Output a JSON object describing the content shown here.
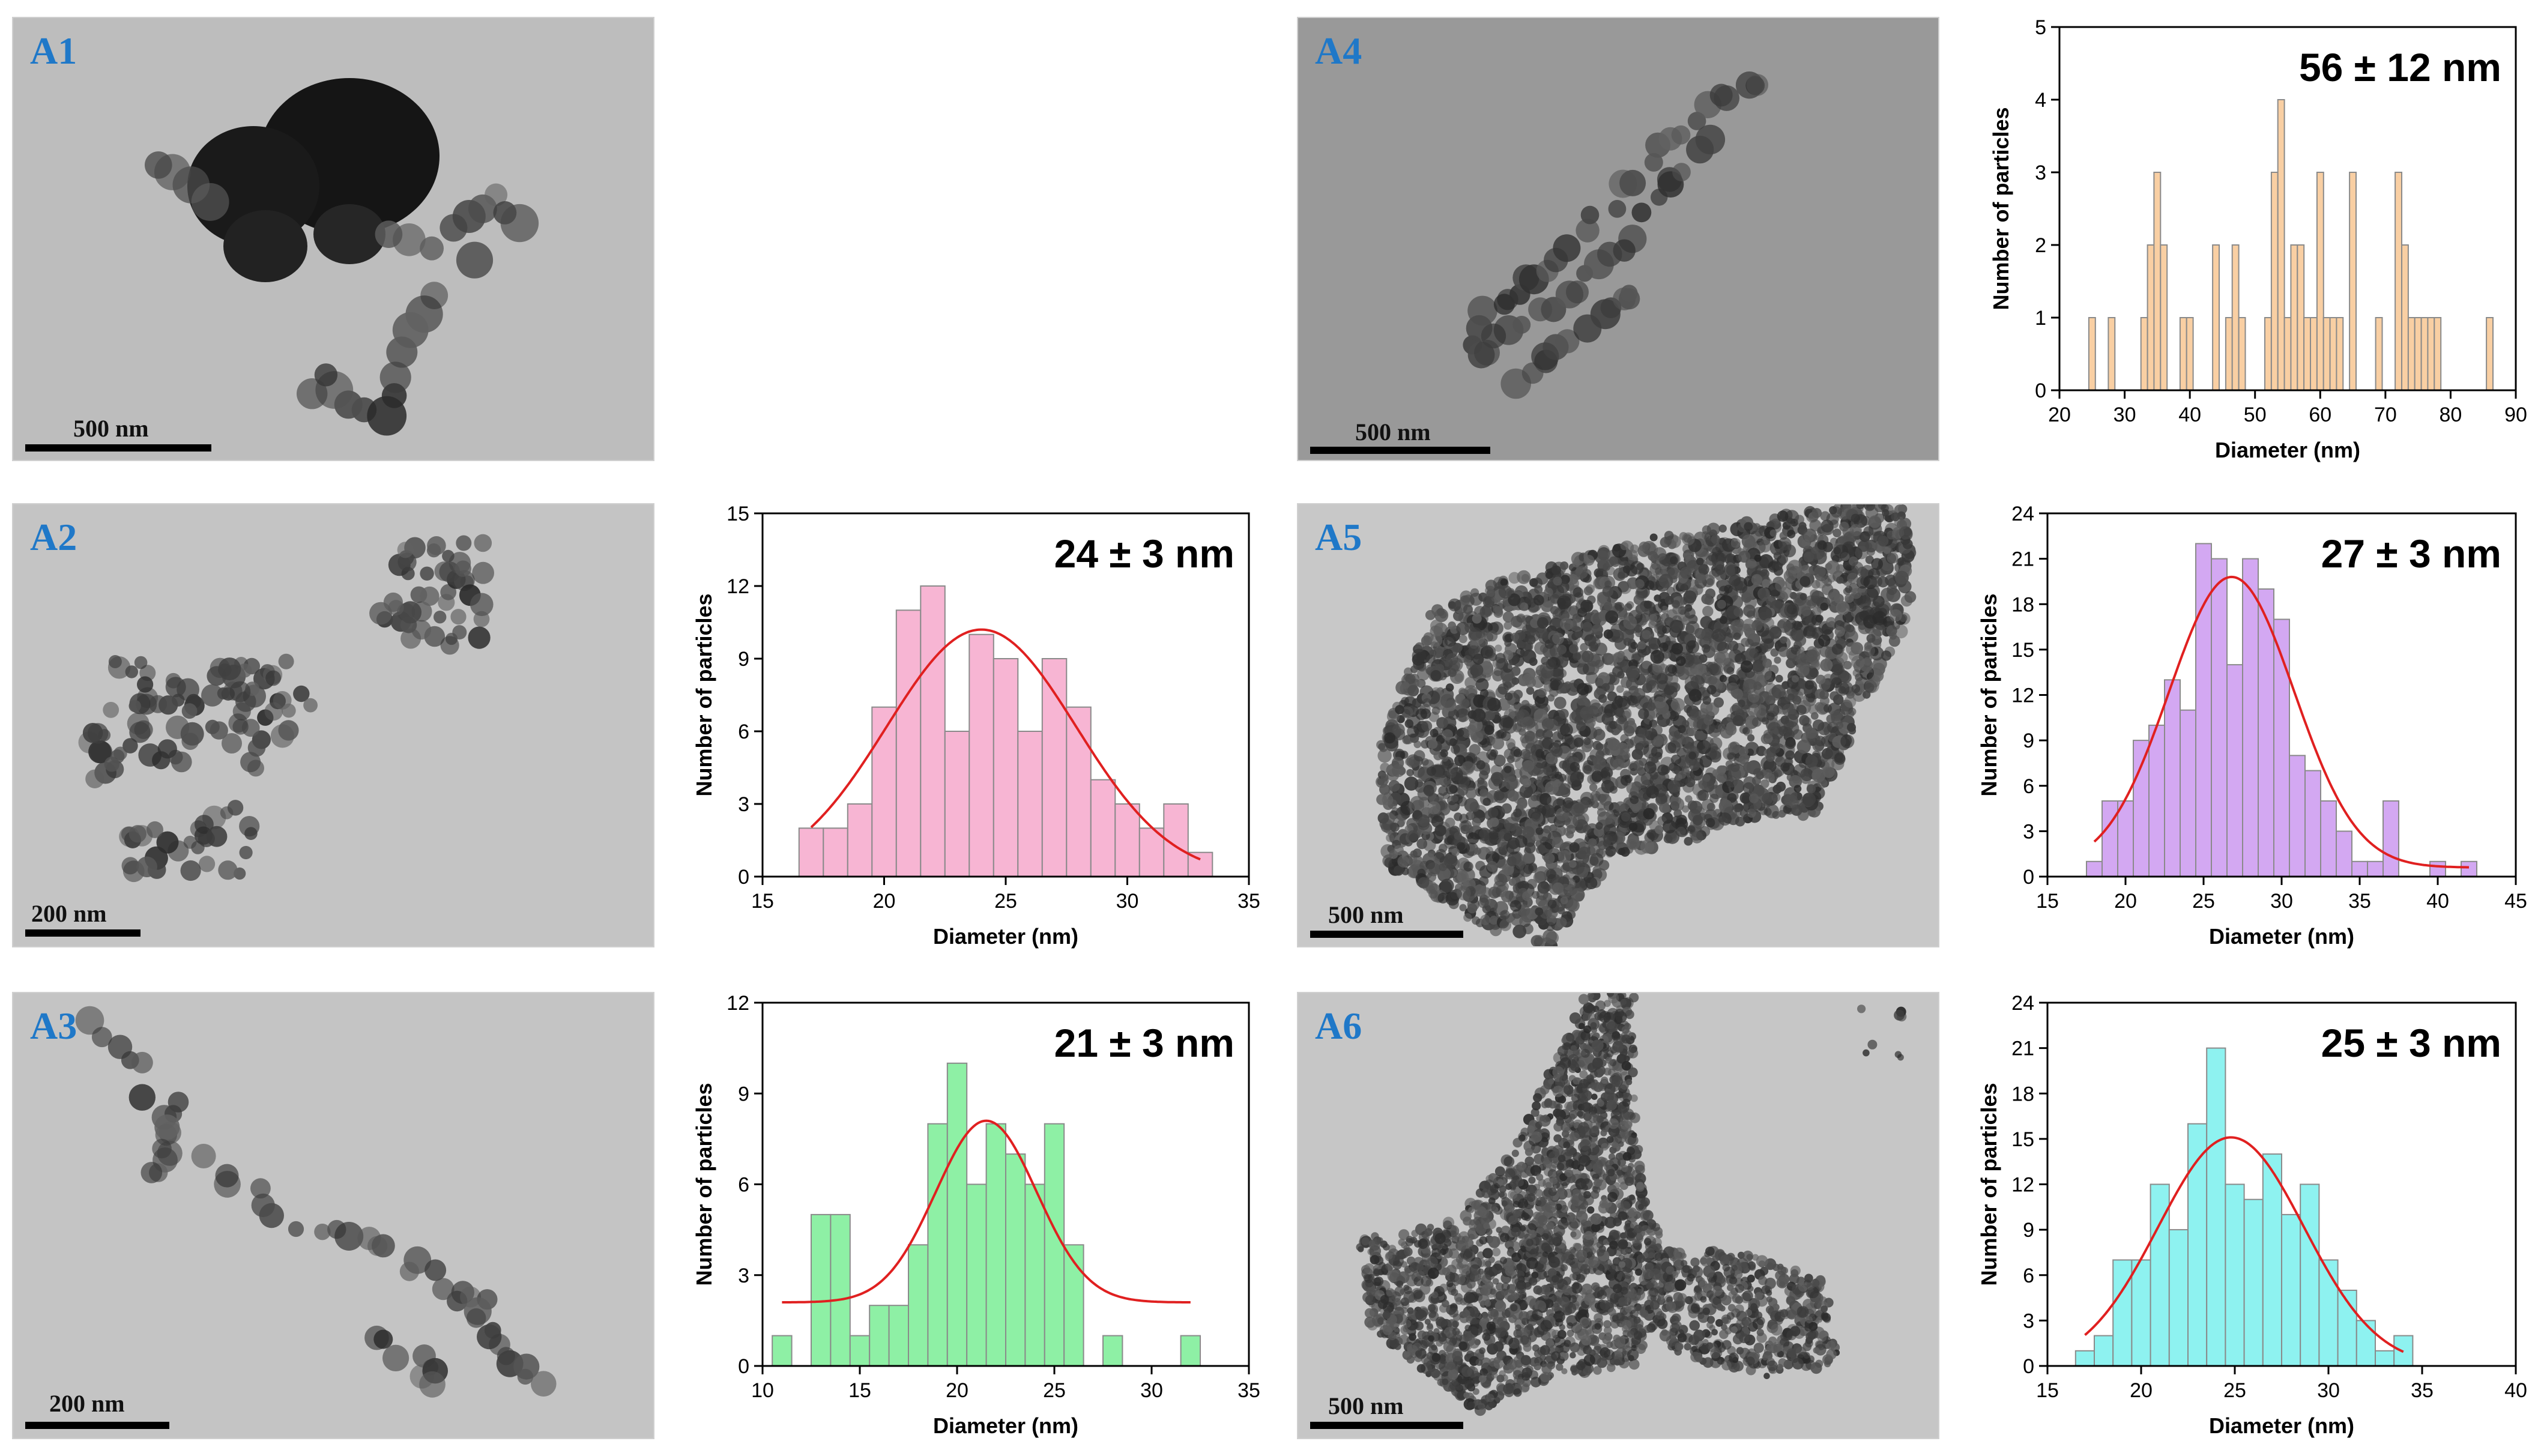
{
  "colors": {
    "A4": "#f9cfa3",
    "A2": "#f7b5d3",
    "A3": "#8ef0a5",
    "A5": "#d3a8f2",
    "A6": "#8ef2f0",
    "fit": "#e02020",
    "label": "#1f78c8"
  },
  "panels": [
    {
      "id": "A1",
      "label": "A1",
      "scale_label": "500 nm"
    },
    {
      "id": "A2",
      "label": "A2",
      "scale_label": "200 nm"
    },
    {
      "id": "A3",
      "label": "A3",
      "scale_label": "200 nm"
    },
    {
      "id": "A4",
      "label": "A4",
      "scale_label": "500 nm"
    },
    {
      "id": "A5",
      "label": "A5",
      "scale_label": "500 nm"
    },
    {
      "id": "A6",
      "label": "A6",
      "scale_label": "500 nm"
    }
  ],
  "chart_data": [
    {
      "id": "A4",
      "type": "bar",
      "annotation": "56 ± 12 nm",
      "xlabel": "Diameter (nm)",
      "ylabel": "Number of particles",
      "xlim": [
        20,
        90
      ],
      "ylim": [
        0,
        5
      ],
      "xticks": [
        20,
        30,
        40,
        50,
        60,
        70,
        80,
        90
      ],
      "yticks": [
        0,
        1,
        2,
        3,
        4,
        5
      ],
      "bin_width": 1,
      "x": [
        25,
        28,
        33,
        34,
        35,
        36,
        39,
        40,
        44,
        46,
        47,
        48,
        52,
        53,
        54,
        55,
        56,
        57,
        58,
        59,
        60,
        61,
        62,
        63,
        65,
        69,
        72,
        73,
        74,
        75,
        76,
        77,
        78,
        86
      ],
      "values": [
        1,
        1,
        1,
        2,
        3,
        2,
        1,
        1,
        2,
        1,
        2,
        1,
        1,
        3,
        4,
        1,
        2,
        2,
        1,
        1,
        3,
        1,
        1,
        1,
        3,
        1,
        3,
        2,
        1,
        1,
        1,
        1,
        1,
        1
      ],
      "fit": null
    },
    {
      "id": "A2",
      "type": "bar",
      "annotation": "24 ± 3 nm",
      "xlabel": "Diameter (nm)",
      "ylabel": "Number of particles",
      "xlim": [
        15,
        35
      ],
      "ylim": [
        0,
        15
      ],
      "xticks": [
        15,
        20,
        25,
        30,
        35
      ],
      "yticks": [
        0,
        3,
        6,
        9,
        12,
        15
      ],
      "bin_width": 1,
      "x": [
        17,
        18,
        19,
        20,
        21,
        22,
        23,
        24,
        25,
        26,
        27,
        28,
        29,
        30,
        31,
        32,
        33
      ],
      "values": [
        2,
        2,
        3,
        7,
        11,
        12,
        6,
        10,
        9,
        6,
        9,
        7,
        4,
        3,
        2,
        3,
        1
      ],
      "fit": {
        "mean": 24,
        "sigma": 3.9,
        "amp": 10.2,
        "from": 17,
        "to": 33
      }
    },
    {
      "id": "A3",
      "type": "bar",
      "annotation": "21 ± 3 nm",
      "xlabel": "Diameter (nm)",
      "ylabel": "Number of particles",
      "xlim": [
        10,
        35
      ],
      "ylim": [
        0,
        12
      ],
      "xticks": [
        10,
        15,
        20,
        25,
        30,
        35
      ],
      "yticks": [
        0,
        3,
        6,
        9,
        12
      ],
      "bin_width": 1,
      "x": [
        11,
        13,
        14,
        15,
        16,
        17,
        18,
        19,
        20,
        21,
        22,
        23,
        24,
        25,
        26,
        28,
        32
      ],
      "values": [
        1,
        5,
        5,
        1,
        2,
        2,
        4,
        8,
        10,
        6,
        8,
        7,
        6,
        8,
        4,
        1,
        1
      ],
      "fit": {
        "mean": 21.5,
        "sigma": 2.6,
        "amp": 6.0,
        "base": 2.1,
        "from": 11,
        "to": 32
      }
    },
    {
      "id": "A5",
      "type": "bar",
      "annotation": "27 ± 3 nm",
      "xlabel": "Diameter (nm)",
      "ylabel": "Number of particles",
      "xlim": [
        15,
        45
      ],
      "ylim": [
        0,
        24
      ],
      "xticks": [
        15,
        20,
        25,
        30,
        35,
        40,
        45
      ],
      "yticks": [
        0,
        3,
        6,
        9,
        12,
        15,
        18,
        21,
        24
      ],
      "bin_width": 1,
      "x": [
        18,
        19,
        20,
        21,
        22,
        23,
        24,
        25,
        26,
        27,
        28,
        29,
        30,
        31,
        32,
        33,
        34,
        35,
        36,
        37,
        40,
        42
      ],
      "values": [
        1,
        5,
        5,
        9,
        10,
        13,
        11,
        22,
        21,
        14,
        21,
        19,
        17,
        8,
        7,
        5,
        3,
        1,
        1,
        5,
        1,
        1
      ],
      "fit": {
        "mean": 26.8,
        "sigma": 4.0,
        "amp": 19.2,
        "base": 0.6,
        "from": 18,
        "to": 42
      }
    },
    {
      "id": "A6",
      "type": "bar",
      "annotation": "25 ± 3 nm",
      "xlabel": "Diameter (nm)",
      "ylabel": "Number of particles",
      "xlim": [
        15,
        40
      ],
      "ylim": [
        0,
        24
      ],
      "xticks": [
        15,
        20,
        25,
        30,
        35,
        40
      ],
      "yticks": [
        0,
        3,
        6,
        9,
        12,
        15,
        18,
        21,
        24
      ],
      "bin_width": 1,
      "x": [
        17,
        18,
        19,
        20,
        21,
        22,
        23,
        24,
        25,
        26,
        27,
        28,
        29,
        30,
        31,
        32,
        33,
        34
      ],
      "values": [
        1,
        2,
        7,
        7,
        12,
        9,
        16,
        21,
        12,
        11,
        14,
        10,
        12,
        7,
        5,
        3,
        1,
        2
      ],
      "fit": {
        "mean": 24.8,
        "sigma": 3.9,
        "amp": 15.1,
        "from": 17,
        "to": 34
      }
    }
  ]
}
